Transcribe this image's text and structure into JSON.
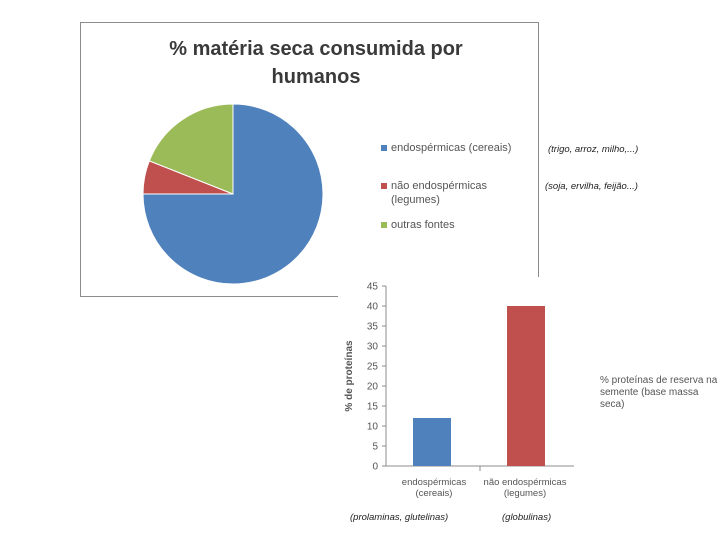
{
  "chart_data": [
    {
      "type": "pie",
      "title": "% matéria seca consumida por humanos",
      "series": [
        {
          "name": "endospérmicas (cereais)",
          "value": 75,
          "color": "#4F81BD"
        },
        {
          "name": "não endospérmicas (legumes)",
          "value": 6,
          "color": "#C0504D"
        },
        {
          "name": "outras fontes",
          "value": 19,
          "color": "#9BBB59"
        }
      ],
      "legend_position": "right"
    },
    {
      "type": "bar",
      "categories": [
        "endospérmicas (cereais)",
        "não endospérmicas (legumes)"
      ],
      "values": [
        12,
        40
      ],
      "colors": [
        "#4F81BD",
        "#C0504D"
      ],
      "ylabel": "% de proteínas",
      "legend": "% proteínas de reserva na semente (base massa seca)",
      "ylim": [
        0,
        45
      ],
      "yticks": [
        "0",
        "5",
        "10",
        "15",
        "20",
        "25",
        "30",
        "35",
        "40",
        "45"
      ],
      "grid": false
    }
  ],
  "notes": {
    "cereais": "(trigo, arroz, milho,...)",
    "legumes": "(soja, ervilha, feijão...)",
    "prolaminas": "(prolaminas, glutelinas)",
    "globulinas": "(globulinas)"
  }
}
